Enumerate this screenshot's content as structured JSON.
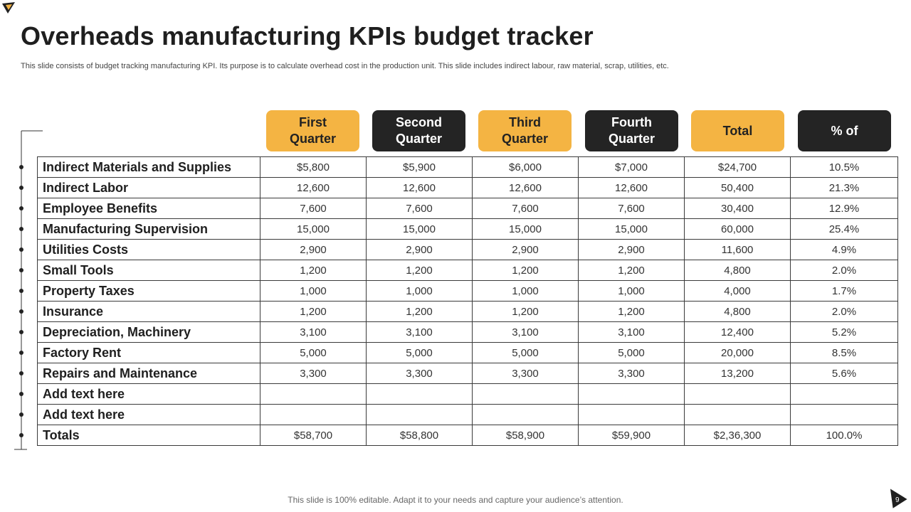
{
  "slide": {
    "title": "Overheads manufacturing KPIs budget tracker",
    "subtitle": "This slide consists of budget tracking manufacturing KPI. Its purpose is to calculate overhead cost in the production unit. This slide includes indirect labour, raw material, scrap, utilities, etc.",
    "footer": "This slide is 100% editable. Adapt it to your needs and capture your audience’s attention.",
    "page_number": "9"
  },
  "colors": {
    "gold": "#f4b443",
    "dark": "#242424",
    "border": "#3a3a3a"
  },
  "table": {
    "headers": [
      "First\nQuarter",
      "Second\nQuarter",
      "Third\nQuarter",
      "Fourth\nQuarter",
      "Total",
      "% of"
    ],
    "rows": [
      {
        "label": "Indirect Materials and Supplies",
        "values": [
          "$5,800",
          "$5,900",
          "$6,000",
          "$7,000",
          "$24,700",
          "10.5%"
        ]
      },
      {
        "label": "Indirect Labor",
        "values": [
          "12,600",
          "12,600",
          "12,600",
          "12,600",
          "50,400",
          "21.3%"
        ]
      },
      {
        "label": "Employee Benefits",
        "values": [
          "7,600",
          "7,600",
          "7,600",
          "7,600",
          "30,400",
          "12.9%"
        ]
      },
      {
        "label": "Manufacturing Supervision",
        "values": [
          "15,000",
          "15,000",
          "15,000",
          "15,000",
          "60,000",
          "25.4%"
        ]
      },
      {
        "label": "Utilities Costs",
        "values": [
          "2,900",
          "2,900",
          "2,900",
          "2,900",
          "11,600",
          "4.9%"
        ]
      },
      {
        "label": "Small Tools",
        "values": [
          "1,200",
          "1,200",
          "1,200",
          "1,200",
          "4,800",
          "2.0%"
        ]
      },
      {
        "label": "Property Taxes",
        "values": [
          "1,000",
          "1,000",
          "1,000",
          "1,000",
          "4,000",
          "1.7%"
        ]
      },
      {
        "label": "Insurance",
        "values": [
          "1,200",
          "1,200",
          "1,200",
          "1,200",
          "4,800",
          "2.0%"
        ]
      },
      {
        "label": "Depreciation, Machinery",
        "values": [
          "3,100",
          "3,100",
          "3,100",
          "3,100",
          "12,400",
          "5.2%"
        ]
      },
      {
        "label": "Factory Rent",
        "values": [
          "5,000",
          "5,000",
          "5,000",
          "5,000",
          "20,000",
          "8.5%"
        ]
      },
      {
        "label": "Repairs and Maintenance",
        "values": [
          "3,300",
          "3,300",
          "3,300",
          "3,300",
          "13,200",
          "5.6%"
        ]
      },
      {
        "label": "Add text here",
        "values": [
          "",
          "",
          "",
          "",
          "",
          ""
        ]
      },
      {
        "label": "Add text here",
        "values": [
          "",
          "",
          "",
          "",
          "",
          ""
        ]
      },
      {
        "label": "Totals",
        "values": [
          "$58,700",
          "$58,800",
          "$58,900",
          "$59,900",
          "$2,36,300",
          "100.0%"
        ]
      }
    ]
  }
}
